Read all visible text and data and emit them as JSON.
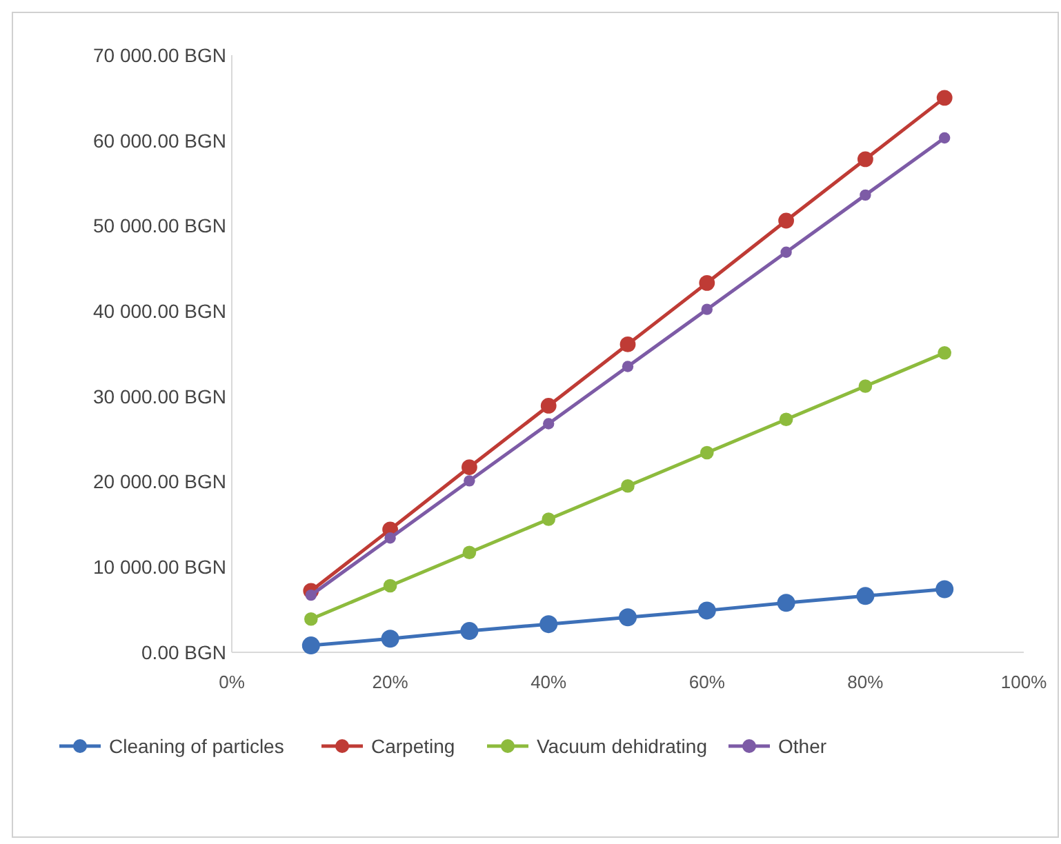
{
  "chart_data": {
    "type": "line",
    "x": [
      10,
      20,
      30,
      40,
      50,
      60,
      70,
      80,
      90
    ],
    "series": [
      {
        "name": "Cleaning of particles",
        "color": "#3d70b8",
        "values": [
          800,
          1600,
          2500,
          3300,
          4100,
          4900,
          5800,
          6600,
          7400
        ]
      },
      {
        "name": "Carpeting",
        "color": "#bf3b35",
        "values": [
          7200,
          14400,
          21700,
          28900,
          36100,
          43300,
          50600,
          57800,
          65000
        ]
      },
      {
        "name": "Vacuum dehidrating",
        "color": "#8dbb3d",
        "values": [
          3900,
          7800,
          11700,
          15600,
          19500,
          23400,
          27300,
          31200,
          35100
        ]
      },
      {
        "name": "Other",
        "color": "#7d5ba6",
        "values": [
          6700,
          13400,
          20100,
          26800,
          33500,
          40200,
          46900,
          53600,
          60300
        ]
      }
    ],
    "xlim": [
      0,
      100
    ],
    "xticks": [
      {
        "value": 0,
        "label": "0%"
      },
      {
        "value": 20,
        "label": "20%"
      },
      {
        "value": 40,
        "label": "40%"
      },
      {
        "value": 60,
        "label": "60%"
      },
      {
        "value": 80,
        "label": "80%"
      },
      {
        "value": 100,
        "label": "100%"
      }
    ],
    "ylim": [
      0,
      70000
    ],
    "yticks": [
      {
        "value": 0,
        "label": "0.00 BGN"
      },
      {
        "value": 10000,
        "label": "10 000.00 BGN"
      },
      {
        "value": 20000,
        "label": "20 000.00 BGN"
      },
      {
        "value": 30000,
        "label": "30 000.00 BGN"
      },
      {
        "value": 40000,
        "label": "40 000.00 BGN"
      },
      {
        "value": 50000,
        "label": "50 000.00 BGN"
      },
      {
        "value": 60000,
        "label": "60 000.00 BGN"
      },
      {
        "value": 70000,
        "label": "70 000.00 BGN"
      }
    ],
    "grid": false,
    "legend": "bottom",
    "marker": "circle",
    "line_style": "solid"
  }
}
